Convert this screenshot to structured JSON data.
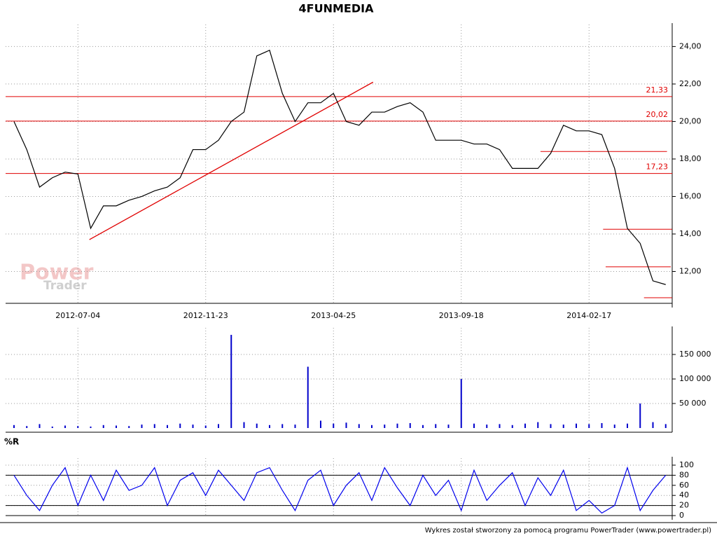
{
  "chart_data": [
    {
      "type": "line",
      "title": "4FUNMEDIA",
      "categories": [
        null,
        null,
        null,
        null,
        null,
        "2012-07-04",
        null,
        null,
        null,
        null,
        null,
        null,
        null,
        null,
        null,
        "2012-11-23",
        null,
        null,
        null,
        null,
        null,
        null,
        null,
        null,
        null,
        "2013-04-25",
        null,
        null,
        null,
        null,
        null,
        null,
        null,
        null,
        null,
        "2013-09-18",
        null,
        null,
        null,
        null,
        null,
        null,
        null,
        null,
        null,
        "2014-02-17",
        null,
        null,
        null,
        null,
        null,
        null
      ],
      "series": [
        {
          "color": "#000000",
          "values": [
            20.0,
            18.5,
            16.5,
            17.0,
            17.3,
            17.2,
            14.3,
            15.5,
            15.5,
            15.8,
            16.0,
            16.3,
            16.5,
            17.0,
            18.5,
            18.5,
            19.0,
            20.0,
            20.5,
            23.5,
            23.8,
            21.5,
            20.0,
            21.0,
            21.0,
            21.5,
            20.0,
            19.8,
            20.5,
            20.5,
            20.8,
            21.0,
            20.5,
            19.0,
            19.0,
            19.0,
            18.8,
            18.8,
            18.5,
            17.5,
            17.5,
            17.5,
            18.3,
            19.8,
            19.5,
            19.5,
            19.3,
            17.5,
            14.3,
            13.5,
            11.5,
            11.3
          ]
        }
      ],
      "ylim": [
        10.3,
        24.8
      ],
      "yticks": [
        {
          "value": 12,
          "label": "12,00"
        },
        {
          "value": 14,
          "label": "14,00"
        },
        {
          "value": 16,
          "label": "16,00"
        },
        {
          "value": 18,
          "label": "18,00"
        },
        {
          "value": 20,
          "label": "20,00"
        },
        {
          "value": 22,
          "label": "22,00"
        },
        {
          "value": 24,
          "label": "24,00"
        }
      ],
      "grid": true,
      "levels": [
        {
          "value": 21.33,
          "label": "21,33"
        },
        {
          "value": 20.02,
          "label": "20,02"
        },
        {
          "value": 17.23,
          "label": "17,23"
        }
      ],
      "level_color": "#e00000",
      "supports": [
        {
          "value": 18.4,
          "x": [
            41.2,
            51.1
          ]
        },
        {
          "value": 14.25,
          "x": [
            46.1,
            51.5
          ]
        },
        {
          "value": 12.25,
          "x": [
            46.3,
            51.4
          ]
        },
        {
          "value": 10.6,
          "x": [
            49.3,
            51.5
          ]
        }
      ],
      "trendline": {
        "x": [
          5.9,
          28.1
        ],
        "y": [
          13.7,
          22.1
        ]
      }
    },
    {
      "type": "bar",
      "color": "#0000cc",
      "values": [
        6000,
        4000,
        8000,
        3000,
        5000,
        4000,
        3000,
        6000,
        5000,
        4000,
        7000,
        8000,
        6000,
        9000,
        7000,
        5000,
        8000,
        190000,
        12000,
        9000,
        6000,
        8000,
        7000,
        125000,
        15000,
        9000,
        11000,
        8000,
        6000,
        7000,
        9000,
        10000,
        6000,
        8000,
        7000,
        100000,
        9000,
        7000,
        8000,
        6000,
        9000,
        12000,
        8000,
        7000,
        9000,
        8000,
        10000,
        7000,
        9000,
        50000,
        12000,
        8000
      ],
      "ylim": [
        0,
        190000
      ],
      "yticks": [
        {
          "value": 50000,
          "label": "50 000"
        },
        {
          "value": 100000,
          "label": "100 000"
        },
        {
          "value": 150000,
          "label": "150 000"
        }
      ],
      "grid": true
    },
    {
      "type": "line",
      "title": "%R",
      "color": "#0000ee",
      "values": [
        80,
        40,
        10,
        60,
        95,
        20,
        80,
        30,
        90,
        50,
        60,
        95,
        20,
        70,
        85,
        40,
        90,
        60,
        30,
        85,
        95,
        50,
        10,
        70,
        90,
        20,
        60,
        85,
        30,
        95,
        55,
        20,
        80,
        40,
        70,
        10,
        90,
        30,
        60,
        85,
        20,
        75,
        40,
        90,
        10,
        30,
        5,
        20,
        95,
        10,
        50,
        80
      ],
      "ylim": [
        0,
        100
      ],
      "yticks": [
        0,
        20,
        40,
        60,
        80,
        100
      ],
      "grid": true,
      "levels": [
        {
          "value": 80
        },
        {
          "value": 20
        }
      ],
      "level_color": "#000000"
    }
  ],
  "watermark": {
    "line1": "Power",
    "line2": "Trader"
  },
  "footer": "Wykres został stworzony za pomocą programu PowerTrader (www.powertrader.pl)"
}
